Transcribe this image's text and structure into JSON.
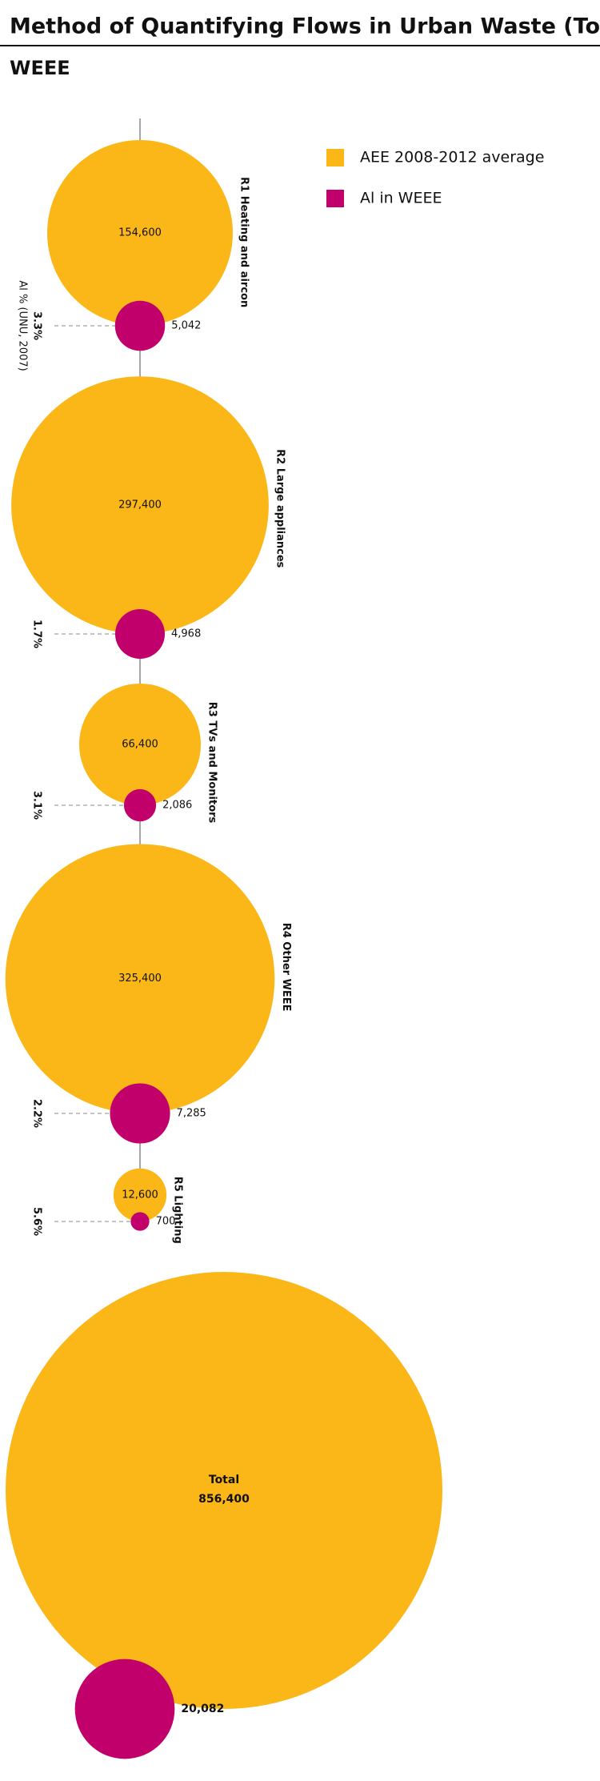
{
  "chart_data": {
    "type": "bubble",
    "title": "Method of Quantifying Flows in Urban Waste (Tonnes)",
    "subtitle": "WEEE",
    "categories": [
      "R1 Heating and aircon",
      "R2 Large appliances",
      "R3 TVs and Monitors",
      "R4 Other WEEE",
      "R5 Lighting"
    ],
    "series": [
      {
        "name": "AEE 2008-2012 average",
        "color": "#fbb718",
        "values": [
          154600,
          297400,
          66400,
          325400,
          12600
        ],
        "value_labels": [
          "154,600",
          "297,400",
          "66,400",
          "325,400",
          "12,600"
        ]
      },
      {
        "name": "Al in WEEE",
        "color": "#c2006b",
        "values": [
          5042,
          4968,
          2086,
          7285,
          700
        ],
        "value_labels": [
          "5,042",
          "4,968",
          "2,086",
          "7,285",
          "700"
        ]
      }
    ],
    "percent_axis_label": "Al % (UNU, 2007)",
    "percents": [
      3.3,
      1.7,
      3.1,
      2.2,
      5.6
    ],
    "percent_labels": [
      "3.3%",
      "1.7%",
      "3.1%",
      "2.2%",
      "5.6%"
    ],
    "total": {
      "label": "Total",
      "values": [
        856400,
        20082
      ],
      "value_labels": [
        "856,400",
        "20,082"
      ]
    }
  }
}
